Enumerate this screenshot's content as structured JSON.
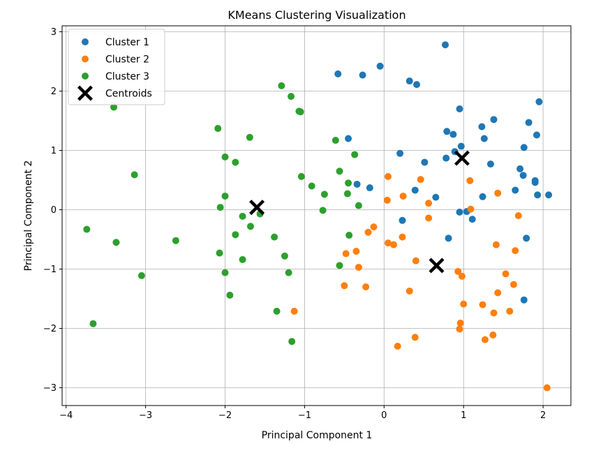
{
  "chart_data": {
    "type": "scatter",
    "title": "KMeans Clustering Visualization",
    "xlabel": "Principal Component 1",
    "ylabel": "Principal Component 2",
    "xlim": [
      -4.05,
      2.35
    ],
    "ylim": [
      -3.3,
      3.1
    ],
    "xticks": [
      -4,
      -3,
      -2,
      -1,
      0,
      1,
      2
    ],
    "yticks": [
      -3,
      -2,
      -1,
      0,
      1,
      2,
      3
    ],
    "grid": true,
    "legend_position": "top-left",
    "series": [
      {
        "name": "Cluster 1",
        "color": "#1f77b4",
        "points": [
          [
            0.77,
            2.78
          ],
          [
            -0.05,
            2.42
          ],
          [
            -0.58,
            2.29
          ],
          [
            -0.27,
            2.27
          ],
          [
            0.32,
            2.17
          ],
          [
            0.41,
            2.11
          ],
          [
            1.95,
            1.82
          ],
          [
            0.95,
            1.7
          ],
          [
            1.38,
            1.52
          ],
          [
            1.82,
            1.47
          ],
          [
            1.23,
            1.4
          ],
          [
            0.79,
            1.32
          ],
          [
            0.87,
            1.27
          ],
          [
            1.92,
            1.26
          ],
          [
            -0.45,
            1.2
          ],
          [
            1.26,
            1.2
          ],
          [
            0.97,
            1.07
          ],
          [
            1.76,
            1.05
          ],
          [
            0.89,
            0.98
          ],
          [
            0.2,
            0.95
          ],
          [
            0.78,
            0.87
          ],
          [
            0.51,
            0.8
          ],
          [
            1.34,
            0.77
          ],
          [
            1.71,
            0.69
          ],
          [
            1.75,
            0.58
          ],
          [
            1.9,
            0.49
          ],
          [
            1.9,
            0.46
          ],
          [
            -0.34,
            0.43
          ],
          [
            -0.18,
            0.37
          ],
          [
            0.39,
            0.33
          ],
          [
            1.65,
            0.33
          ],
          [
            1.93,
            0.25
          ],
          [
            2.07,
            0.25
          ],
          [
            1.24,
            0.22
          ],
          [
            0.65,
            0.21
          ],
          [
            0.95,
            -0.04
          ],
          [
            1.04,
            -0.03
          ],
          [
            1.11,
            -0.16
          ],
          [
            0.23,
            -0.18
          ],
          [
            0.81,
            -0.48
          ],
          [
            1.79,
            -0.48
          ],
          [
            1.76,
            -1.52
          ]
        ]
      },
      {
        "name": "Cluster 2",
        "color": "#ff7f0e",
        "points": [
          [
            0.05,
            0.56
          ],
          [
            0.46,
            0.51
          ],
          [
            1.08,
            0.49
          ],
          [
            1.43,
            0.28
          ],
          [
            0.24,
            0.23
          ],
          [
            0.04,
            0.16
          ],
          [
            0.56,
            0.11
          ],
          [
            1.09,
            0.01
          ],
          [
            1.69,
            -0.1
          ],
          [
            0.56,
            -0.14
          ],
          [
            -0.13,
            -0.29
          ],
          [
            -0.2,
            -0.38
          ],
          [
            0.23,
            -0.46
          ],
          [
            0.05,
            -0.56
          ],
          [
            0.12,
            -0.59
          ],
          [
            1.41,
            -0.59
          ],
          [
            1.65,
            -0.69
          ],
          [
            -0.35,
            -0.7
          ],
          [
            -0.48,
            -0.74
          ],
          [
            0.4,
            -0.86
          ],
          [
            -0.32,
            -0.97
          ],
          [
            0.93,
            -1.04
          ],
          [
            0.98,
            -1.12
          ],
          [
            1.53,
            -1.08
          ],
          [
            1.63,
            -1.26
          ],
          [
            -0.5,
            -1.28
          ],
          [
            -0.23,
            -1.3
          ],
          [
            0.32,
            -1.37
          ],
          [
            1.43,
            -1.4
          ],
          [
            1.0,
            -1.59
          ],
          [
            1.24,
            -1.6
          ],
          [
            -1.13,
            -1.71
          ],
          [
            1.58,
            -1.71
          ],
          [
            1.38,
            -1.74
          ],
          [
            0.96,
            -1.91
          ],
          [
            0.95,
            -2.01
          ],
          [
            1.37,
            -2.11
          ],
          [
            0.39,
            -2.15
          ],
          [
            1.27,
            -2.19
          ],
          [
            0.17,
            -2.3
          ],
          [
            2.05,
            -3.0
          ]
        ]
      },
      {
        "name": "Cluster 3",
        "color": "#2ca02c",
        "points": [
          [
            -1.29,
            2.09
          ],
          [
            -1.17,
            1.91
          ],
          [
            -3.4,
            1.73
          ],
          [
            -1.07,
            1.66
          ],
          [
            -1.05,
            1.65
          ],
          [
            -2.09,
            1.37
          ],
          [
            -1.69,
            1.22
          ],
          [
            -0.61,
            1.17
          ],
          [
            -0.37,
            0.93
          ],
          [
            -2.0,
            0.89
          ],
          [
            -1.87,
            0.8
          ],
          [
            -0.56,
            0.65
          ],
          [
            -3.14,
            0.59
          ],
          [
            -1.04,
            0.56
          ],
          [
            -0.45,
            0.45
          ],
          [
            -0.91,
            0.4
          ],
          [
            -2.0,
            0.23
          ],
          [
            -0.75,
            0.26
          ],
          [
            -0.46,
            0.27
          ],
          [
            -0.32,
            0.07
          ],
          [
            -2.06,
            0.04
          ],
          [
            -0.77,
            -0.01
          ],
          [
            -1.56,
            -0.07
          ],
          [
            -1.78,
            -0.11
          ],
          [
            -1.68,
            -0.28
          ],
          [
            -3.74,
            -0.33
          ],
          [
            -0.44,
            -0.43
          ],
          [
            -1.87,
            -0.42
          ],
          [
            -1.38,
            -0.46
          ],
          [
            -3.37,
            -0.55
          ],
          [
            -2.62,
            -0.52
          ],
          [
            -2.07,
            -0.73
          ],
          [
            -1.25,
            -0.78
          ],
          [
            -1.78,
            -0.84
          ],
          [
            -0.56,
            -0.94
          ],
          [
            -2.0,
            -1.06
          ],
          [
            -1.2,
            -1.06
          ],
          [
            -3.05,
            -1.11
          ],
          [
            -1.94,
            -1.44
          ],
          [
            -1.35,
            -1.71
          ],
          [
            -3.66,
            -1.92
          ],
          [
            -1.16,
            -2.22
          ]
        ]
      },
      {
        "name": "Centroids",
        "color": "#000000",
        "marker": "X",
        "points": [
          [
            -1.6,
            0.04
          ],
          [
            0.98,
            0.87
          ],
          [
            0.66,
            -0.94
          ]
        ]
      }
    ]
  }
}
